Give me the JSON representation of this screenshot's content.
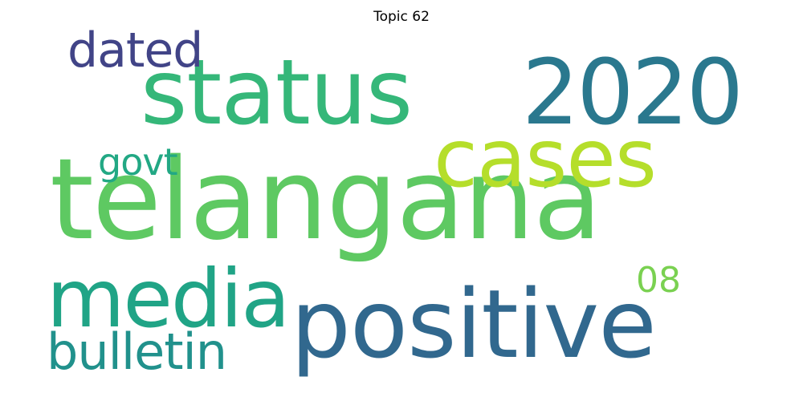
{
  "title": "Topic 62",
  "words": [
    {
      "id": "telangana",
      "text": "telangana",
      "color": "#5ec962"
    },
    {
      "id": "status",
      "text": "status",
      "color": "#35b779"
    },
    {
      "id": "2020",
      "text": "2020",
      "color": "#2a788e"
    },
    {
      "id": "positive",
      "text": "positive",
      "color": "#31688e"
    },
    {
      "id": "media",
      "text": "media",
      "color": "#20a486"
    },
    {
      "id": "cases",
      "text": "cases",
      "color": "#b5de2b"
    },
    {
      "id": "bulletin",
      "text": "bulletin",
      "color": "#21918c"
    },
    {
      "id": "dated",
      "text": "dated",
      "color": "#414487"
    },
    {
      "id": "govt",
      "text": "govt",
      "color": "#22a884"
    },
    {
      "id": "08",
      "text": "08",
      "color": "#7ad151"
    }
  ]
}
